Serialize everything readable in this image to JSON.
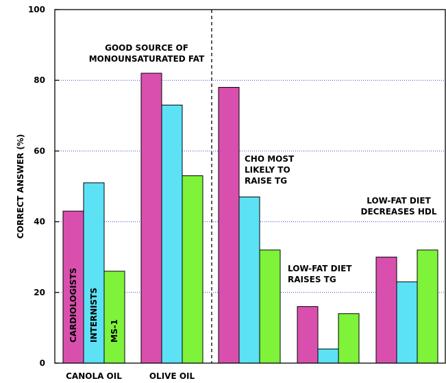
{
  "chart_data": {
    "type": "bar",
    "ylabel": "CORRECT ANSWER (%)",
    "ylim": [
      0,
      100
    ],
    "yticks": [
      0,
      20,
      40,
      60,
      80,
      100
    ],
    "grid": true,
    "categories": [
      "CANOLA OIL",
      "OLIVE OIL",
      "",
      "",
      ""
    ],
    "series": [
      {
        "name": "CARDIOLOGISTS",
        "color": "#d94fae",
        "values": [
          43,
          82,
          78,
          16,
          30
        ]
      },
      {
        "name": "INTERNISTS",
        "color": "#5ce1f5",
        "values": [
          51,
          73,
          47,
          4,
          23
        ]
      },
      {
        "name": "MS-1",
        "color": "#7ff23a",
        "values": [
          26,
          53,
          32,
          14,
          32
        ]
      }
    ],
    "annotations": [
      {
        "lines": [
          "GOOD SOURCE OF",
          "MONOUNSATURATED FAT"
        ]
      },
      {
        "lines": [
          "CHO MOST",
          "LIKELY TO",
          "RAISE TG"
        ]
      },
      {
        "lines": [
          "LOW-FAT DIET",
          "RAISES TG"
        ]
      },
      {
        "lines": [
          "LOW-FAT DIET",
          "DECREASES HDL"
        ]
      }
    ]
  }
}
